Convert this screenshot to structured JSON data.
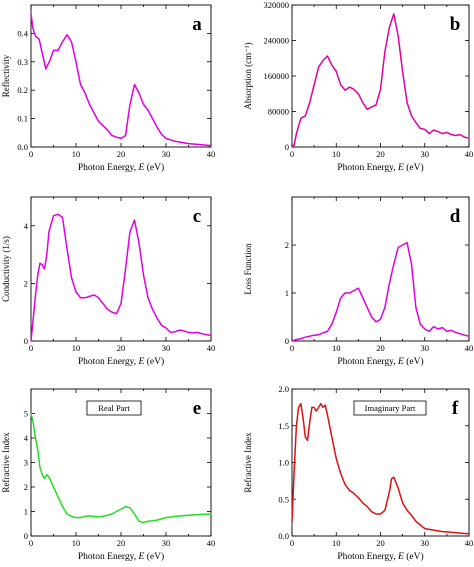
{
  "chart_data": [
    {
      "type": "line",
      "panel_letter": "a",
      "xlabel": "Photon Energy, E (eV)",
      "ylabel": "Reflectivity",
      "xlim": [
        0,
        40
      ],
      "ylim": [
        0,
        0.5
      ],
      "xticks": [
        "0",
        "10",
        "20",
        "30",
        "40"
      ],
      "yticks": [
        "0.0",
        "0.1",
        "0.2",
        "0.3",
        "0.4"
      ],
      "ytick_values": [
        0,
        0.1,
        0.2,
        0.3,
        0.4
      ],
      "color": "#e000e0",
      "series": [
        {
          "x": [
            0,
            0.4,
            1,
            1.8,
            2.5,
            3.3,
            4.2,
            5,
            6,
            7,
            8,
            9,
            10,
            11,
            12,
            13,
            14,
            15,
            16,
            17,
            18,
            19,
            20,
            21,
            22,
            23,
            24,
            25,
            26,
            27,
            28,
            29,
            30,
            32,
            35,
            38,
            40
          ],
          "values": [
            0.47,
            0.42,
            0.39,
            0.38,
            0.33,
            0.275,
            0.305,
            0.34,
            0.34,
            0.37,
            0.395,
            0.37,
            0.3,
            0.22,
            0.19,
            0.15,
            0.12,
            0.09,
            0.075,
            0.06,
            0.04,
            0.035,
            0.03,
            0.04,
            0.15,
            0.22,
            0.19,
            0.15,
            0.13,
            0.1,
            0.07,
            0.045,
            0.03,
            0.02,
            0.012,
            0.008,
            0.005
          ]
        }
      ]
    },
    {
      "type": "line",
      "panel_letter": "b",
      "xlabel": "Photon Energy, E (eV)",
      "ylabel": "Absorption (cm⁻¹)",
      "xlim": [
        0,
        40
      ],
      "ylim": [
        0,
        320000
      ],
      "xticks": [
        "0",
        "10",
        "20",
        "30",
        "40"
      ],
      "yticks": [
        "0",
        "80000",
        "160000",
        "240000",
        "320000"
      ],
      "ytick_values": [
        0,
        80000,
        160000,
        240000,
        320000
      ],
      "color": "#e000a0",
      "series": [
        {
          "x": [
            0,
            0.5,
            1,
            2,
            3,
            4,
            5,
            6,
            7,
            8,
            9,
            10,
            11,
            12,
            13,
            14,
            15,
            16,
            17,
            18,
            19,
            20,
            21,
            22,
            23,
            24,
            25,
            26,
            27,
            28,
            29,
            30,
            31,
            32,
            33,
            34,
            35,
            36,
            37,
            38,
            39,
            40
          ],
          "values": [
            0,
            5000,
            30000,
            65000,
            70000,
            100000,
            140000,
            180000,
            195000,
            205000,
            185000,
            170000,
            140000,
            128000,
            135000,
            130000,
            120000,
            100000,
            85000,
            90000,
            95000,
            130000,
            215000,
            270000,
            300000,
            250000,
            170000,
            100000,
            70000,
            55000,
            42000,
            40000,
            30000,
            38000,
            35000,
            30000,
            33000,
            28000,
            26000,
            28000,
            22000,
            20000
          ]
        }
      ]
    },
    {
      "type": "line",
      "panel_letter": "c",
      "xlabel": "Photon Energy, E (eV)",
      "ylabel": "Conductivity (1/s)",
      "xlim": [
        0,
        40
      ],
      "ylim": [
        0,
        5
      ],
      "xticks": [
        "0",
        "10",
        "20",
        "30",
        "40"
      ],
      "yticks": [
        "0",
        "2",
        "4"
      ],
      "ytick_values": [
        0,
        2,
        4
      ],
      "color": "#e000e0",
      "series": [
        {
          "x": [
            0,
            0.5,
            1,
            1.5,
            2,
            2.5,
            3,
            3.5,
            4,
            5,
            6,
            7,
            8,
            9,
            10,
            11,
            12,
            13,
            14,
            15,
            16,
            17,
            18,
            19,
            20,
            21,
            22,
            23,
            24,
            25,
            26,
            27,
            28,
            29,
            30,
            31,
            32,
            33,
            34,
            35,
            36,
            37,
            38,
            39,
            40
          ],
          "values": [
            0,
            0.8,
            1.6,
            2.3,
            2.7,
            2.65,
            2.5,
            3.0,
            3.8,
            4.35,
            4.4,
            4.3,
            3.2,
            2.2,
            1.7,
            1.5,
            1.5,
            1.55,
            1.6,
            1.5,
            1.3,
            1.1,
            1.0,
            0.95,
            1.3,
            2.5,
            3.8,
            4.2,
            3.4,
            2.3,
            1.5,
            1.1,
            0.8,
            0.55,
            0.45,
            0.3,
            0.32,
            0.38,
            0.35,
            0.3,
            0.28,
            0.3,
            0.25,
            0.22,
            0.2
          ]
        }
      ]
    },
    {
      "type": "line",
      "panel_letter": "d",
      "xlabel": "Photon Energy, E (eV)",
      "ylabel": "Loss Function",
      "xlim": [
        0,
        40
      ],
      "ylim": [
        0,
        3
      ],
      "xticks": [
        "0",
        "10",
        "20",
        "30",
        "40"
      ],
      "yticks": [
        "0",
        "1",
        "2"
      ],
      "ytick_values": [
        0,
        1,
        2
      ],
      "color": "#e000e0",
      "series": [
        {
          "x": [
            0,
            1,
            2,
            3,
            4,
            5,
            6,
            7,
            8,
            9,
            10,
            11,
            12,
            13,
            14,
            15,
            16,
            17,
            18,
            19,
            20,
            21,
            22,
            23,
            24,
            25,
            26,
            27,
            28,
            29,
            30,
            31,
            32,
            33,
            34,
            35,
            36,
            37,
            38,
            39,
            40
          ],
          "values": [
            0,
            0.03,
            0.05,
            0.08,
            0.1,
            0.12,
            0.13,
            0.17,
            0.2,
            0.35,
            0.6,
            0.9,
            1.0,
            1.0,
            1.05,
            1.1,
            0.9,
            0.7,
            0.5,
            0.4,
            0.45,
            0.7,
            1.2,
            1.6,
            1.95,
            2.0,
            2.05,
            1.6,
            0.7,
            0.35,
            0.25,
            0.2,
            0.3,
            0.25,
            0.28,
            0.2,
            0.22,
            0.18,
            0.15,
            0.12,
            0.1
          ]
        }
      ]
    },
    {
      "type": "line",
      "panel_letter": "e",
      "xlabel": "Photon Energy, E (eV)",
      "ylabel": "Refractive Index",
      "box_label": "Real Part",
      "xlim": [
        0,
        40
      ],
      "ylim": [
        0,
        6
      ],
      "xticks": [
        "0",
        "10",
        "20",
        "30",
        "40"
      ],
      "yticks": [
        "0",
        "1",
        "2",
        "3",
        "4",
        "5"
      ],
      "ytick_values": [
        0,
        1,
        2,
        3,
        4,
        5
      ],
      "color": "#22dd22",
      "series": [
        {
          "x": [
            0,
            0.5,
            1,
            1.5,
            2,
            2.5,
            3,
            3.5,
            4,
            5,
            6,
            7,
            8,
            9,
            10,
            11,
            12,
            13,
            14,
            15,
            16,
            17,
            18,
            19,
            20,
            21,
            22,
            23,
            24,
            25,
            26,
            27,
            28,
            29,
            30,
            32,
            35,
            38,
            40
          ],
          "values": [
            5.0,
            4.6,
            4.0,
            3.5,
            2.8,
            2.5,
            2.35,
            2.5,
            2.4,
            2.0,
            1.6,
            1.2,
            0.9,
            0.8,
            0.75,
            0.75,
            0.8,
            0.82,
            0.8,
            0.78,
            0.8,
            0.85,
            0.9,
            1.0,
            1.1,
            1.2,
            1.15,
            0.9,
            0.6,
            0.55,
            0.6,
            0.62,
            0.65,
            0.7,
            0.75,
            0.8,
            0.85,
            0.88,
            0.9
          ]
        }
      ]
    },
    {
      "type": "line",
      "panel_letter": "f",
      "xlabel": "Photon Energy, E (eV)",
      "ylabel": "Refractive Index",
      "box_label": "Imaginary Part",
      "xlim": [
        0,
        40
      ],
      "ylim": [
        0,
        2
      ],
      "xticks": [
        "0",
        "10",
        "20",
        "30",
        "40"
      ],
      "yticks": [
        "0.0",
        "0.5",
        "1.0",
        "1.5",
        "2.0"
      ],
      "ytick_values": [
        0,
        0.5,
        1.0,
        1.5,
        2.0
      ],
      "color": "#dd1111",
      "series": [
        {
          "x": [
            0,
            0.5,
            1,
            1.5,
            2,
            2.5,
            3,
            3.5,
            4,
            4.5,
            5,
            5.5,
            6,
            6.5,
            7,
            7.5,
            8,
            9,
            10,
            11,
            12,
            13,
            14,
            15,
            16,
            17,
            18,
            19,
            20,
            21,
            22,
            22.5,
            23,
            24,
            25,
            26,
            27,
            28,
            29,
            30,
            32,
            34,
            36,
            38,
            40
          ],
          "values": [
            0.2,
            0.9,
            1.5,
            1.75,
            1.8,
            1.6,
            1.35,
            1.3,
            1.55,
            1.75,
            1.75,
            1.7,
            1.75,
            1.8,
            1.75,
            1.78,
            1.65,
            1.35,
            1.05,
            0.85,
            0.7,
            0.62,
            0.58,
            0.52,
            0.45,
            0.4,
            0.33,
            0.3,
            0.3,
            0.35,
            0.6,
            0.78,
            0.8,
            0.65,
            0.45,
            0.35,
            0.28,
            0.2,
            0.15,
            0.1,
            0.08,
            0.06,
            0.05,
            0.04,
            0.03
          ]
        }
      ]
    }
  ]
}
